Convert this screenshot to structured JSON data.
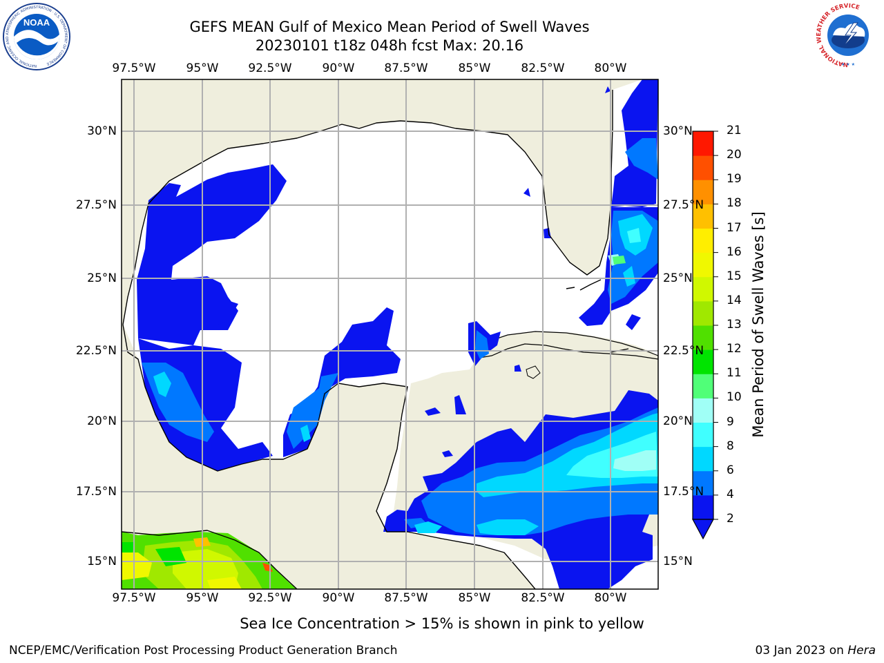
{
  "header": {
    "title_line1": "GEFS MEAN Gulf of Mexico Mean Period of Swell Waves",
    "title_line2": "20230101 t18z 048h fcst   Max: 20.16"
  },
  "logos": {
    "noaa_text": "NOAA",
    "noaa_ring": "NATIONAL OCEANIC AND ATMOSPHERIC ADMINISTRATION · U.S. DEPARTMENT OF COMMERCE",
    "nws_ring": "NATIONAL WEATHER SERVICE"
  },
  "map": {
    "lon_labels": [
      "97.5°W",
      "95°W",
      "92.5°W",
      "90°W",
      "87.5°W",
      "85°W",
      "82.5°W",
      "80°W"
    ],
    "lat_labels": [
      "30°N",
      "27.5°N",
      "25°N",
      "22.5°N",
      "20°N",
      "17.5°N",
      "15°N"
    ],
    "lon_range": [
      -98,
      -78.2
    ],
    "lat_range": [
      14,
      31.8
    ],
    "colors": {
      "land": "#efeedd",
      "water": "#ffffff",
      "grid": "#b0b0b0",
      "coast": "#000000"
    }
  },
  "colorbar": {
    "label": "Mean Period of Swell Waves [s]",
    "ticks": [
      "2",
      "4",
      "6",
      "8",
      "9",
      "10",
      "11",
      "12",
      "13",
      "14",
      "15",
      "16",
      "17",
      "18",
      "19",
      "20",
      "21"
    ],
    "colors": [
      "#0a14f0",
      "#0078ff",
      "#00d8ff",
      "#40ffff",
      "#a0fff6",
      "#50ff78",
      "#00e400",
      "#50e000",
      "#a0e800",
      "#d0f800",
      "#f0f800",
      "#ffee00",
      "#ffc000",
      "#ff9000",
      "#ff5000",
      "#ff1800"
    ]
  },
  "footer": {
    "caption": "Sea Ice Concentration > 15% is shown in pink to yellow",
    "credit_left": "NCEP/EMC/Verification Post Processing Product Generation Branch",
    "credit_date": "03 Jan 2023 on ",
    "credit_machine": "Hera"
  }
}
